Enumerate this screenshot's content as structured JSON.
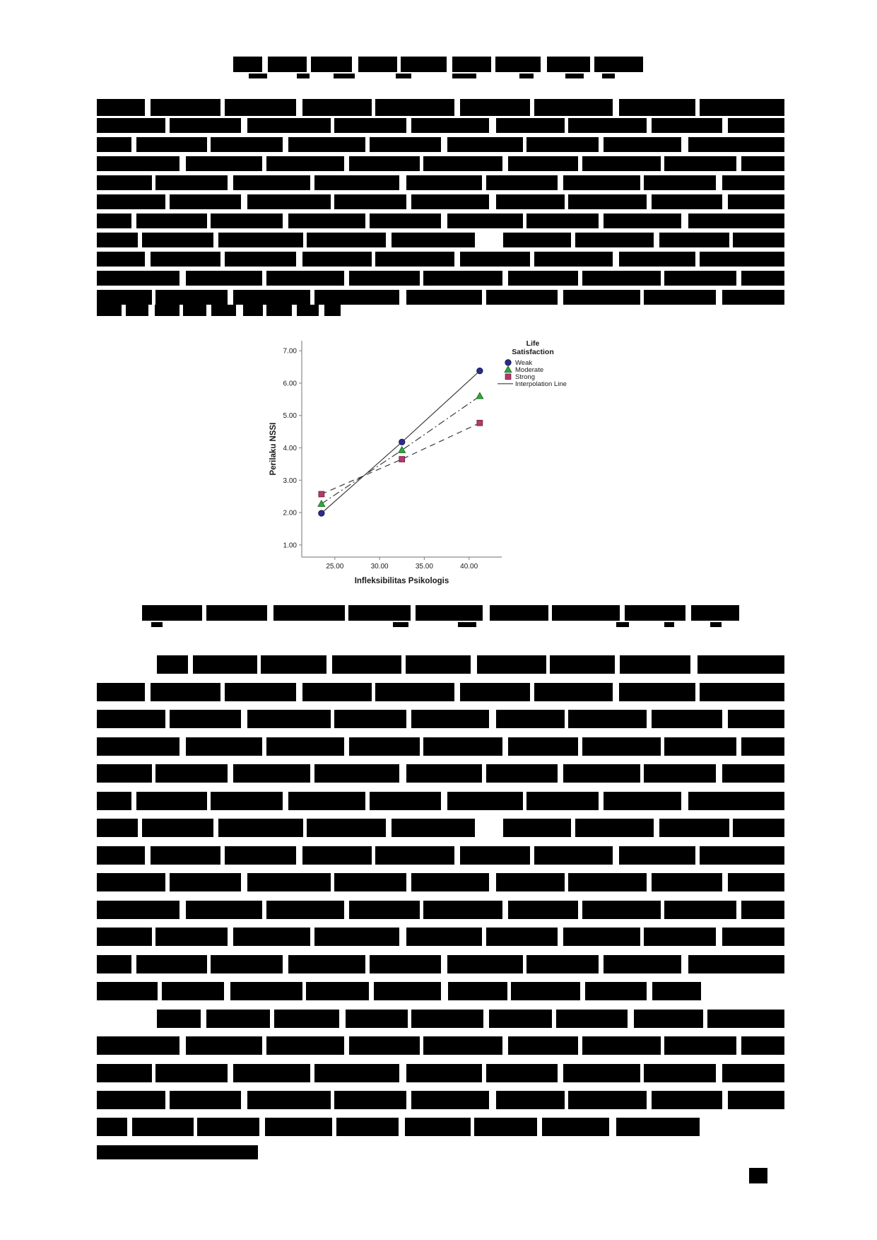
{
  "document": {
    "kind": "scanned journal page, text redacted with black bars",
    "background": "#ffffff"
  },
  "chart_data": {
    "type": "line",
    "title": "",
    "xlabel": "Infleksibilitas Psikologis",
    "ylabel": "Perilaku NSSI",
    "x": [
      23.5,
      32.5,
      41.2
    ],
    "series": [
      {
        "name": "Weak",
        "marker": "circle",
        "line": "solid",
        "color": "#2c2c8c",
        "edge": "#15154d",
        "values": [
          1.98,
          4.18,
          6.38
        ]
      },
      {
        "name": "Moderate",
        "marker": "triangle",
        "line": "dashdot",
        "color": "#2fa93a",
        "edge": "#1a6b22",
        "values": [
          2.27,
          3.93,
          5.6
        ]
      },
      {
        "name": "Strong",
        "marker": "square",
        "line": "dashed",
        "color": "#b43a6c",
        "edge": "#6e2242",
        "values": [
          2.57,
          3.65,
          4.77
        ]
      }
    ],
    "x_ticks": [
      25,
      30,
      35,
      40
    ],
    "y_ticks": [
      7,
      6,
      5,
      4,
      3,
      2,
      1
    ],
    "xlim": [
      21.3,
      43.66
    ],
    "ylim": [
      0.625,
      7.31
    ],
    "grid": false,
    "tick_format_decimals": 2,
    "legend": {
      "position": "right-top",
      "title_lines": [
        "Life",
        "Satisfaction"
      ],
      "interpolation_label": "Interpolation Line"
    },
    "line_color": "#3c3c3c",
    "axis_color": "#8a8a8a",
    "text_color": "#1a1a1a"
  },
  "redactions": {
    "gap_sets": [
      [
        [
          0.07,
          8
        ],
        [
          0.18,
          6
        ],
        [
          0.29,
          9
        ],
        [
          0.4,
          5
        ],
        [
          0.52,
          8
        ],
        [
          0.63,
          6
        ],
        [
          0.75,
          9
        ],
        [
          0.87,
          6
        ]
      ],
      [
        [
          0.1,
          6
        ],
        [
          0.21,
          9
        ],
        [
          0.34,
          5
        ],
        [
          0.45,
          7
        ],
        [
          0.57,
          10
        ],
        [
          0.68,
          5
        ],
        [
          0.8,
          7
        ],
        [
          0.91,
          8
        ]
      ],
      [
        [
          0.05,
          7
        ],
        [
          0.16,
          5
        ],
        [
          0.27,
          8
        ],
        [
          0.39,
          6
        ],
        [
          0.5,
          9
        ],
        [
          0.62,
          5
        ],
        [
          0.73,
          7
        ],
        [
          0.85,
          10
        ]
      ],
      [
        [
          0.12,
          9
        ],
        [
          0.24,
          6
        ],
        [
          0.36,
          7
        ],
        [
          0.47,
          5
        ],
        [
          0.59,
          8
        ],
        [
          0.7,
          6
        ],
        [
          0.82,
          5
        ],
        [
          0.93,
          7
        ]
      ],
      [
        [
          0.08,
          5
        ],
        [
          0.19,
          8
        ],
        [
          0.31,
          6
        ],
        [
          0.44,
          10
        ],
        [
          0.56,
          6
        ],
        [
          0.67,
          8
        ],
        [
          0.79,
          5
        ],
        [
          0.9,
          9
        ]
      ],
      [
        [
          0.06,
          6
        ],
        [
          0.17,
          7
        ],
        [
          0.3,
          5
        ],
        [
          0.42,
          8
        ],
        [
          0.55,
          40
        ],
        [
          0.69,
          6
        ],
        [
          0.81,
          8
        ],
        [
          0.92,
          5
        ]
      ]
    ],
    "title": [
      [
        330,
        80,
        580,
        22,
        0
      ]
    ],
    "title_marks": [
      [
        352,
        104,
        26,
        7
      ],
      [
        420,
        104,
        18,
        7
      ],
      [
        472,
        104,
        30,
        7
      ],
      [
        560,
        104,
        22,
        7
      ],
      [
        640,
        104,
        34,
        7
      ],
      [
        735,
        104,
        20,
        7
      ],
      [
        800,
        104,
        26,
        7
      ],
      [
        852,
        104,
        18,
        7
      ]
    ],
    "para1": [
      [
        137,
        140,
        973,
        24,
        0
      ],
      [
        137,
        167,
        973,
        21,
        1
      ],
      [
        137,
        194,
        973,
        21,
        2
      ],
      [
        137,
        221,
        973,
        21,
        3
      ],
      [
        137,
        248,
        973,
        21,
        4
      ],
      [
        137,
        275,
        973,
        21,
        1
      ],
      [
        137,
        302,
        973,
        21,
        2
      ],
      [
        137,
        329,
        973,
        21,
        5
      ],
      [
        137,
        356,
        973,
        21,
        0
      ],
      [
        137,
        383,
        973,
        21,
        3
      ],
      [
        137,
        410,
        973,
        21,
        4
      ],
      [
        137,
        431,
        345,
        16,
        1
      ]
    ],
    "caption": [
      [
        201,
        856,
        845,
        22,
        1
      ]
    ],
    "caption_marks": [
      [
        214,
        880,
        16,
        7
      ],
      [
        556,
        880,
        22,
        7
      ],
      [
        648,
        880,
        26,
        7
      ],
      [
        872,
        880,
        18,
        7
      ],
      [
        940,
        880,
        14,
        7
      ],
      [
        1005,
        880,
        16,
        7
      ]
    ],
    "para2": [
      [
        222,
        927,
        888,
        26,
        2
      ],
      [
        137,
        966,
        973,
        26,
        0
      ],
      [
        137,
        1004,
        973,
        26,
        1
      ],
      [
        137,
        1043,
        973,
        26,
        3
      ],
      [
        137,
        1081,
        973,
        26,
        4
      ],
      [
        137,
        1120,
        973,
        26,
        2
      ],
      [
        137,
        1158,
        973,
        26,
        5
      ],
      [
        137,
        1197,
        973,
        26,
        0
      ],
      [
        137,
        1235,
        973,
        26,
        1
      ],
      [
        137,
        1274,
        973,
        26,
        3
      ],
      [
        137,
        1312,
        973,
        26,
        4
      ],
      [
        137,
        1351,
        973,
        26,
        2
      ],
      [
        137,
        1389,
        855,
        26,
        1
      ]
    ],
    "para3": [
      [
        222,
        1428,
        888,
        26,
        0
      ],
      [
        137,
        1466,
        973,
        26,
        3
      ],
      [
        137,
        1505,
        973,
        26,
        4
      ],
      [
        137,
        1543,
        973,
        26,
        1
      ],
      [
        137,
        1581,
        853,
        26,
        2
      ],
      [
        137,
        1620,
        228,
        20,
        -1
      ]
    ],
    "page_number": [
      [
        1060,
        1652,
        26,
        22,
        -1
      ]
    ]
  }
}
